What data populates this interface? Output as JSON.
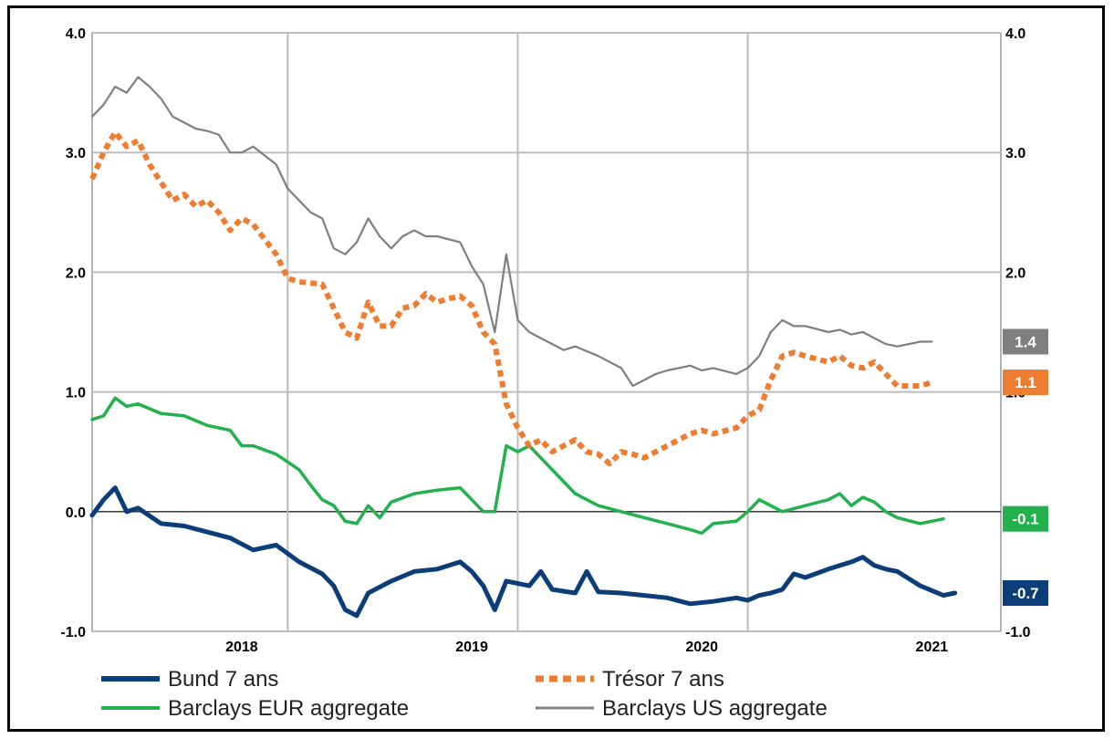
{
  "chart_data": {
    "type": "line",
    "ylim": [
      -1.0,
      4.0
    ],
    "yticks": [
      "4.0",
      "3.0",
      "2.0",
      "1.0",
      "0.0",
      "-1.0"
    ],
    "yticks_right": [
      "4.0",
      "3.0",
      "2.0",
      "1.0",
      "0.0",
      "-1.0"
    ],
    "xticks": [
      {
        "label": "2018",
        "x": 2018.15
      },
      {
        "label": "2019",
        "x": 2019.15
      },
      {
        "label": "2020",
        "x": 2020.15
      },
      {
        "label": "2021",
        "x": 2021.15
      }
    ],
    "grid_x": [
      2018.35,
      2019.35,
      2020.35
    ],
    "xlim": [
      2017.5,
      2021.45
    ],
    "grid": true,
    "legend_position": "bottom",
    "series": [
      {
        "name": "Bund 7 ans",
        "color": "#0b3d78",
        "style": "solid-thick",
        "end_label": "-0.7",
        "points": [
          [
            2017.5,
            -0.03
          ],
          [
            2017.55,
            0.1
          ],
          [
            2017.6,
            0.2
          ],
          [
            2017.65,
            0.0
          ],
          [
            2017.7,
            0.03
          ],
          [
            2017.8,
            -0.1
          ],
          [
            2017.9,
            -0.12
          ],
          [
            2018.0,
            -0.17
          ],
          [
            2018.1,
            -0.22
          ],
          [
            2018.2,
            -0.32
          ],
          [
            2018.3,
            -0.28
          ],
          [
            2018.4,
            -0.42
          ],
          [
            2018.5,
            -0.52
          ],
          [
            2018.55,
            -0.62
          ],
          [
            2018.6,
            -0.82
          ],
          [
            2018.65,
            -0.87
          ],
          [
            2018.7,
            -0.68
          ],
          [
            2018.8,
            -0.58
          ],
          [
            2018.9,
            -0.5
          ],
          [
            2019.0,
            -0.48
          ],
          [
            2019.1,
            -0.42
          ],
          [
            2019.15,
            -0.5
          ],
          [
            2019.2,
            -0.62
          ],
          [
            2019.25,
            -0.82
          ],
          [
            2019.3,
            -0.58
          ],
          [
            2019.4,
            -0.62
          ],
          [
            2019.45,
            -0.5
          ],
          [
            2019.5,
            -0.65
          ],
          [
            2019.6,
            -0.68
          ],
          [
            2019.65,
            -0.5
          ],
          [
            2019.7,
            -0.67
          ],
          [
            2019.8,
            -0.68
          ],
          [
            2019.9,
            -0.7
          ],
          [
            2020.0,
            -0.72
          ],
          [
            2020.1,
            -0.77
          ],
          [
            2020.2,
            -0.75
          ],
          [
            2020.3,
            -0.72
          ],
          [
            2020.35,
            -0.74
          ],
          [
            2020.4,
            -0.7
          ],
          [
            2020.45,
            -0.68
          ],
          [
            2020.5,
            -0.65
          ],
          [
            2020.55,
            -0.52
          ],
          [
            2020.6,
            -0.55
          ],
          [
            2020.7,
            -0.48
          ],
          [
            2020.8,
            -0.42
          ],
          [
            2020.85,
            -0.38
          ],
          [
            2020.9,
            -0.45
          ],
          [
            2020.95,
            -0.48
          ],
          [
            2021.0,
            -0.5
          ],
          [
            2021.1,
            -0.62
          ],
          [
            2021.2,
            -0.7
          ],
          [
            2021.25,
            -0.68
          ]
        ]
      },
      {
        "name": "Trésor 7 ans",
        "color": "#ed7d31",
        "style": "dotted-thick",
        "end_label": "1.1",
        "points": [
          [
            2017.5,
            2.78
          ],
          [
            2017.55,
            3.0
          ],
          [
            2017.6,
            3.17
          ],
          [
            2017.65,
            3.05
          ],
          [
            2017.7,
            3.1
          ],
          [
            2017.75,
            2.9
          ],
          [
            2017.8,
            2.75
          ],
          [
            2017.85,
            2.6
          ],
          [
            2017.9,
            2.65
          ],
          [
            2017.95,
            2.55
          ],
          [
            2018.0,
            2.6
          ],
          [
            2018.05,
            2.5
          ],
          [
            2018.1,
            2.35
          ],
          [
            2018.15,
            2.45
          ],
          [
            2018.2,
            2.4
          ],
          [
            2018.3,
            2.15
          ],
          [
            2018.35,
            1.95
          ],
          [
            2018.4,
            1.92
          ],
          [
            2018.5,
            1.9
          ],
          [
            2018.55,
            1.7
          ],
          [
            2018.6,
            1.5
          ],
          [
            2018.65,
            1.45
          ],
          [
            2018.7,
            1.75
          ],
          [
            2018.75,
            1.55
          ],
          [
            2018.8,
            1.55
          ],
          [
            2018.85,
            1.7
          ],
          [
            2018.9,
            1.72
          ],
          [
            2018.95,
            1.82
          ],
          [
            2019.0,
            1.75
          ],
          [
            2019.05,
            1.78
          ],
          [
            2019.1,
            1.8
          ],
          [
            2019.15,
            1.72
          ],
          [
            2019.2,
            1.5
          ],
          [
            2019.25,
            1.4
          ],
          [
            2019.3,
            0.9
          ],
          [
            2019.35,
            0.7
          ],
          [
            2019.4,
            0.55
          ],
          [
            2019.45,
            0.6
          ],
          [
            2019.5,
            0.5
          ],
          [
            2019.55,
            0.55
          ],
          [
            2019.6,
            0.6
          ],
          [
            2019.65,
            0.5
          ],
          [
            2019.7,
            0.48
          ],
          [
            2019.75,
            0.4
          ],
          [
            2019.8,
            0.5
          ],
          [
            2019.85,
            0.48
          ],
          [
            2019.9,
            0.45
          ],
          [
            2019.95,
            0.5
          ],
          [
            2020.0,
            0.55
          ],
          [
            2020.05,
            0.6
          ],
          [
            2020.1,
            0.65
          ],
          [
            2020.15,
            0.68
          ],
          [
            2020.2,
            0.65
          ],
          [
            2020.3,
            0.7
          ],
          [
            2020.35,
            0.8
          ],
          [
            2020.4,
            0.85
          ],
          [
            2020.45,
            1.1
          ],
          [
            2020.5,
            1.3
          ],
          [
            2020.55,
            1.33
          ],
          [
            2020.6,
            1.3
          ],
          [
            2020.7,
            1.25
          ],
          [
            2020.75,
            1.3
          ],
          [
            2020.8,
            1.22
          ],
          [
            2020.85,
            1.2
          ],
          [
            2020.9,
            1.25
          ],
          [
            2020.95,
            1.15
          ],
          [
            2021.0,
            1.05
          ],
          [
            2021.1,
            1.05
          ],
          [
            2021.15,
            1.08
          ]
        ]
      },
      {
        "name": "Barclays EUR aggregate",
        "color": "#22b14c",
        "style": "solid",
        "end_label": "-0.1",
        "points": [
          [
            2017.5,
            0.77
          ],
          [
            2017.55,
            0.8
          ],
          [
            2017.6,
            0.95
          ],
          [
            2017.65,
            0.88
          ],
          [
            2017.7,
            0.9
          ],
          [
            2017.8,
            0.82
          ],
          [
            2017.9,
            0.8
          ],
          [
            2018.0,
            0.72
          ],
          [
            2018.1,
            0.68
          ],
          [
            2018.15,
            0.55
          ],
          [
            2018.2,
            0.55
          ],
          [
            2018.3,
            0.48
          ],
          [
            2018.4,
            0.35
          ],
          [
            2018.45,
            0.22
          ],
          [
            2018.5,
            0.1
          ],
          [
            2018.55,
            0.05
          ],
          [
            2018.6,
            -0.08
          ],
          [
            2018.65,
            -0.1
          ],
          [
            2018.7,
            0.05
          ],
          [
            2018.75,
            -0.05
          ],
          [
            2018.8,
            0.08
          ],
          [
            2018.9,
            0.15
          ],
          [
            2019.0,
            0.18
          ],
          [
            2019.1,
            0.2
          ],
          [
            2019.15,
            0.1
          ],
          [
            2019.2,
            0.0
          ],
          [
            2019.25,
            0.0
          ],
          [
            2019.3,
            0.55
          ],
          [
            2019.35,
            0.5
          ],
          [
            2019.4,
            0.55
          ],
          [
            2019.45,
            0.45
          ],
          [
            2019.5,
            0.35
          ],
          [
            2019.55,
            0.25
          ],
          [
            2019.6,
            0.15
          ],
          [
            2019.7,
            0.05
          ],
          [
            2019.8,
            0.0
          ],
          [
            2019.9,
            -0.05
          ],
          [
            2020.0,
            -0.1
          ],
          [
            2020.1,
            -0.15
          ],
          [
            2020.15,
            -0.18
          ],
          [
            2020.2,
            -0.1
          ],
          [
            2020.3,
            -0.08
          ],
          [
            2020.35,
            0.0
          ],
          [
            2020.4,
            0.1
          ],
          [
            2020.45,
            0.05
          ],
          [
            2020.5,
            0.0
          ],
          [
            2020.6,
            0.05
          ],
          [
            2020.7,
            0.1
          ],
          [
            2020.75,
            0.15
          ],
          [
            2020.8,
            0.05
          ],
          [
            2020.85,
            0.12
          ],
          [
            2020.9,
            0.08
          ],
          [
            2020.95,
            0.0
          ],
          [
            2021.0,
            -0.05
          ],
          [
            2021.1,
            -0.1
          ],
          [
            2021.15,
            -0.08
          ],
          [
            2021.2,
            -0.06
          ]
        ]
      },
      {
        "name": "Barclays US aggregate",
        "color": "#7f7f7f",
        "style": "solid",
        "end_label": "1.4",
        "points": [
          [
            2017.5,
            3.3
          ],
          [
            2017.55,
            3.4
          ],
          [
            2017.6,
            3.55
          ],
          [
            2017.65,
            3.5
          ],
          [
            2017.7,
            3.63
          ],
          [
            2017.75,
            3.55
          ],
          [
            2017.8,
            3.45
          ],
          [
            2017.85,
            3.3
          ],
          [
            2017.9,
            3.25
          ],
          [
            2017.95,
            3.2
          ],
          [
            2018.0,
            3.18
          ],
          [
            2018.05,
            3.15
          ],
          [
            2018.1,
            3.0
          ],
          [
            2018.15,
            3.0
          ],
          [
            2018.2,
            3.05
          ],
          [
            2018.3,
            2.9
          ],
          [
            2018.35,
            2.7
          ],
          [
            2018.4,
            2.6
          ],
          [
            2018.45,
            2.5
          ],
          [
            2018.5,
            2.45
          ],
          [
            2018.55,
            2.2
          ],
          [
            2018.6,
            2.15
          ],
          [
            2018.65,
            2.25
          ],
          [
            2018.7,
            2.45
          ],
          [
            2018.75,
            2.3
          ],
          [
            2018.8,
            2.2
          ],
          [
            2018.85,
            2.3
          ],
          [
            2018.9,
            2.35
          ],
          [
            2018.95,
            2.3
          ],
          [
            2019.0,
            2.3
          ],
          [
            2019.1,
            2.25
          ],
          [
            2019.15,
            2.05
          ],
          [
            2019.2,
            1.9
          ],
          [
            2019.25,
            1.5
          ],
          [
            2019.3,
            2.15
          ],
          [
            2019.35,
            1.6
          ],
          [
            2019.4,
            1.5
          ],
          [
            2019.45,
            1.45
          ],
          [
            2019.5,
            1.4
          ],
          [
            2019.55,
            1.35
          ],
          [
            2019.6,
            1.38
          ],
          [
            2019.7,
            1.3
          ],
          [
            2019.8,
            1.2
          ],
          [
            2019.85,
            1.05
          ],
          [
            2019.9,
            1.1
          ],
          [
            2019.95,
            1.15
          ],
          [
            2020.0,
            1.18
          ],
          [
            2020.05,
            1.2
          ],
          [
            2020.1,
            1.22
          ],
          [
            2020.15,
            1.18
          ],
          [
            2020.2,
            1.2
          ],
          [
            2020.3,
            1.15
          ],
          [
            2020.35,
            1.2
          ],
          [
            2020.4,
            1.3
          ],
          [
            2020.45,
            1.5
          ],
          [
            2020.5,
            1.6
          ],
          [
            2020.55,
            1.55
          ],
          [
            2020.6,
            1.55
          ],
          [
            2020.7,
            1.5
          ],
          [
            2020.75,
            1.52
          ],
          [
            2020.8,
            1.48
          ],
          [
            2020.85,
            1.5
          ],
          [
            2020.9,
            1.45
          ],
          [
            2020.95,
            1.4
          ],
          [
            2021.0,
            1.38
          ],
          [
            2021.1,
            1.42
          ],
          [
            2021.15,
            1.42
          ]
        ]
      }
    ]
  }
}
